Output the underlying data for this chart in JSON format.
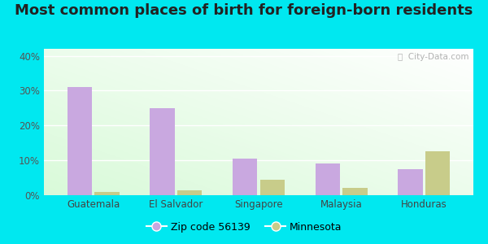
{
  "title": "Most common places of birth for foreign-born residents",
  "categories": [
    "Guatemala",
    "El Salvador",
    "Singapore",
    "Malaysia",
    "Honduras"
  ],
  "zip_values": [
    31,
    25,
    10.5,
    9,
    7.5
  ],
  "mn_values": [
    1,
    1.5,
    4.5,
    2,
    12.5
  ],
  "bar_color_zip": "#c9a8e0",
  "bar_color_mn": "#c8cc8a",
  "ylim": [
    0,
    42
  ],
  "yticks": [
    0,
    10,
    20,
    30,
    40
  ],
  "ytick_labels": [
    "0%",
    "10%",
    "20%",
    "30%",
    "40%"
  ],
  "legend_zip": "Zip code 56139",
  "legend_mn": "Minnesota",
  "bg_outer": "#00e8f0",
  "watermark": "ⓘ  City-Data.com",
  "title_fontsize": 13,
  "label_fontsize": 9,
  "tick_fontsize": 8.5
}
